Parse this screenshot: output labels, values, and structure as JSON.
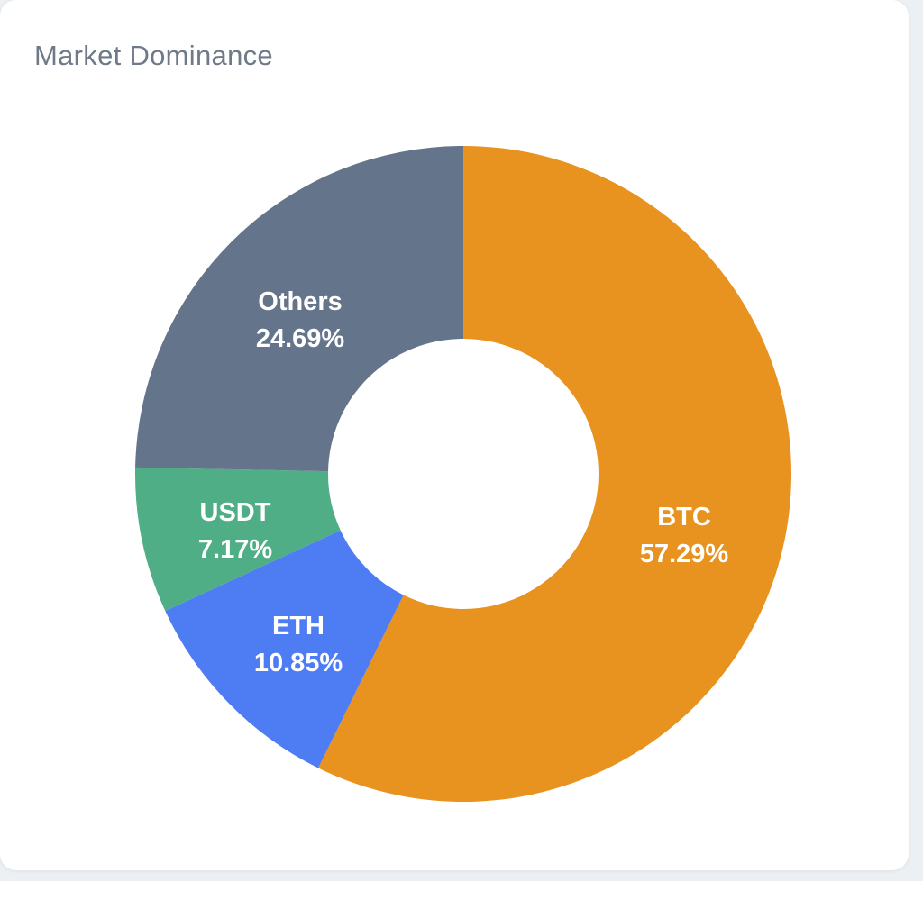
{
  "card": {
    "title": "Market Dominance"
  },
  "chart_data": {
    "type": "pie",
    "variant": "donut",
    "title": "Market Dominance",
    "start_angle_deg": 0,
    "direction": "clockwise",
    "hole_color": "#FFFFFF",
    "label_color": "#FFFFFF",
    "slices": [
      {
        "label": "BTC",
        "value": 57.29,
        "display": "57.29%",
        "color": "#E8921F"
      },
      {
        "label": "ETH",
        "value": 10.85,
        "display": "10.85%",
        "color": "#4D7CF3"
      },
      {
        "label": "USDT",
        "value": 7.17,
        "display": "7.17%",
        "color": "#4FAE85"
      },
      {
        "label": "Others",
        "value": 24.69,
        "display": "24.69%",
        "color": "#64748B"
      }
    ]
  }
}
